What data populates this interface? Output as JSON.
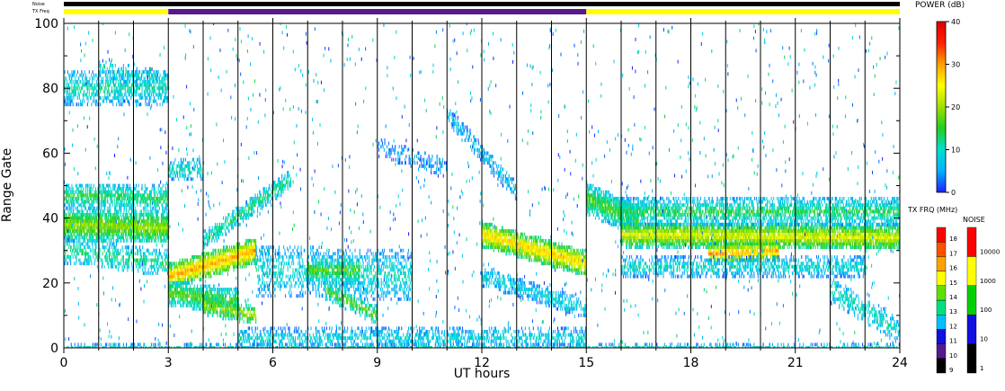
{
  "chart_data": {
    "type": "heatmap",
    "xlabel": "UT hours",
    "ylabel": "Range Gate",
    "xlim": [
      0,
      24
    ],
    "ylim": [
      0,
      100
    ],
    "x_ticks": [
      0,
      3,
      6,
      9,
      12,
      15,
      18,
      21,
      24
    ],
    "y_ticks": [
      0,
      20,
      40,
      60,
      80,
      100
    ],
    "x_minor_step": 1,
    "y_minor_step": 10,
    "top_bars": {
      "noise_label": "Noise",
      "txfreq_label": "TX Freq",
      "txfreq_segments": [
        {
          "start": 0,
          "end": 3,
          "color": "#ffff00"
        },
        {
          "start": 3,
          "end": 15,
          "color": "#551a8b"
        },
        {
          "start": 15,
          "end": 24,
          "color": "#ffff00"
        }
      ]
    },
    "power_colorbar": {
      "title": "POWER (dB)",
      "range": [
        0,
        40
      ],
      "ticks": [
        0,
        10,
        20,
        30,
        40
      ],
      "stops": [
        "#2020ff",
        "#00b0ff",
        "#00e0d0",
        "#20d020",
        "#a0e000",
        "#ffff00",
        "#ffa000",
        "#ff2000",
        "#e00000"
      ]
    },
    "txfreq_colorbar": {
      "title": "TX FRQ (MHz)",
      "levels": [
        "9",
        "10",
        "11",
        "12",
        "13",
        "14",
        "15",
        "16",
        "17",
        "18"
      ],
      "colors": [
        "#000000",
        "#551a8b",
        "#1010e0",
        "#00c0ff",
        "#00e080",
        "#60e000",
        "#ffff00",
        "#ffa000",
        "#ff5000",
        "#ff0000"
      ]
    },
    "noise_colorbar": {
      "title": "NOISE",
      "levels": [
        "1",
        "10",
        "100",
        "1000",
        "10000"
      ],
      "colors": [
        "#000000",
        "#1010e0",
        "#00d000",
        "#ffff00",
        "#ff0000"
      ]
    },
    "features": [
      {
        "start": 0.0,
        "end": 3.0,
        "g0": 38,
        "g1": 37,
        "width": 5,
        "power": 20,
        "density": 0.9
      },
      {
        "start": 0.0,
        "end": 3.0,
        "g0": 47,
        "g1": 46,
        "width": 4,
        "power": 14,
        "density": 0.6
      },
      {
        "start": 0.0,
        "end": 3.0,
        "g0": 30,
        "g1": 26,
        "width": 4,
        "power": 13,
        "density": 0.4
      },
      {
        "start": 0.0,
        "end": 3.0,
        "g0": 80,
        "g1": 80,
        "width": 5,
        "power": 11,
        "density": 0.5
      },
      {
        "start": 1.0,
        "end": 3.0,
        "g0": 86,
        "g1": 82,
        "width": 3,
        "power": 11,
        "density": 0.3
      },
      {
        "start": 3.0,
        "end": 5.5,
        "g0": 22,
        "g1": 30,
        "width": 4,
        "power": 30,
        "density": 0.95
      },
      {
        "start": 3.0,
        "end": 5.0,
        "g0": 17,
        "g1": 14,
        "width": 4,
        "power": 17,
        "density": 0.8
      },
      {
        "start": 4.0,
        "end": 5.5,
        "g0": 13,
        "g1": 10,
        "width": 3,
        "power": 22,
        "density": 0.6
      },
      {
        "start": 4.0,
        "end": 6.5,
        "g0": 33,
        "g1": 52,
        "width": 3,
        "power": 13,
        "density": 0.55
      },
      {
        "start": 3.0,
        "end": 4.0,
        "g0": 55,
        "g1": 55,
        "width": 3,
        "power": 11,
        "density": 0.4
      },
      {
        "start": 5.5,
        "end": 10.0,
        "g0": 24,
        "g1": 22,
        "width": 8,
        "power": 10,
        "density": 0.35
      },
      {
        "start": 7.0,
        "end": 8.5,
        "g0": 24,
        "g1": 24,
        "width": 4,
        "power": 17,
        "density": 0.55
      },
      {
        "start": 7.5,
        "end": 9.0,
        "g0": 18,
        "g1": 10,
        "width": 3,
        "power": 17,
        "density": 0.5
      },
      {
        "start": 5.0,
        "end": 15.0,
        "g0": 3,
        "g1": 3,
        "width": 3,
        "power": 9,
        "density": 0.4
      },
      {
        "start": 0.0,
        "end": 24.0,
        "g0": 0,
        "g1": 0,
        "width": 1,
        "power": 10,
        "density": 0.4
      },
      {
        "start": 9.0,
        "end": 11.0,
        "g0": 62,
        "g1": 55,
        "width": 3,
        "power": 5,
        "density": 0.3
      },
      {
        "start": 11.0,
        "end": 13.0,
        "g0": 72,
        "g1": 48,
        "width": 3,
        "power": 7,
        "density": 0.4
      },
      {
        "start": 12.0,
        "end": 15.0,
        "g0": 35,
        "g1": 26,
        "width": 4,
        "power": 28,
        "density": 0.9
      },
      {
        "start": 12.0,
        "end": 15.0,
        "g0": 22,
        "g1": 12,
        "width": 3,
        "power": 9,
        "density": 0.5
      },
      {
        "start": 15.0,
        "end": 16.5,
        "g0": 46,
        "g1": 39,
        "width": 5,
        "power": 16,
        "density": 0.85
      },
      {
        "start": 16.0,
        "end": 24.0,
        "g0": 35,
        "g1": 34,
        "width": 4,
        "power": 24,
        "density": 0.9
      },
      {
        "start": 18.5,
        "end": 20.5,
        "g0": 29,
        "g1": 30,
        "width": 3,
        "power": 30,
        "density": 0.8
      },
      {
        "start": 16.0,
        "end": 24.0,
        "g0": 42,
        "g1": 42,
        "width": 4,
        "power": 14,
        "density": 0.6
      },
      {
        "start": 16.0,
        "end": 23.0,
        "g0": 25,
        "g1": 25,
        "width": 3,
        "power": 10,
        "density": 0.45
      },
      {
        "start": 22.0,
        "end": 24.0,
        "g0": 18,
        "g1": 5,
        "width": 4,
        "power": 11,
        "density": 0.35
      }
    ]
  }
}
